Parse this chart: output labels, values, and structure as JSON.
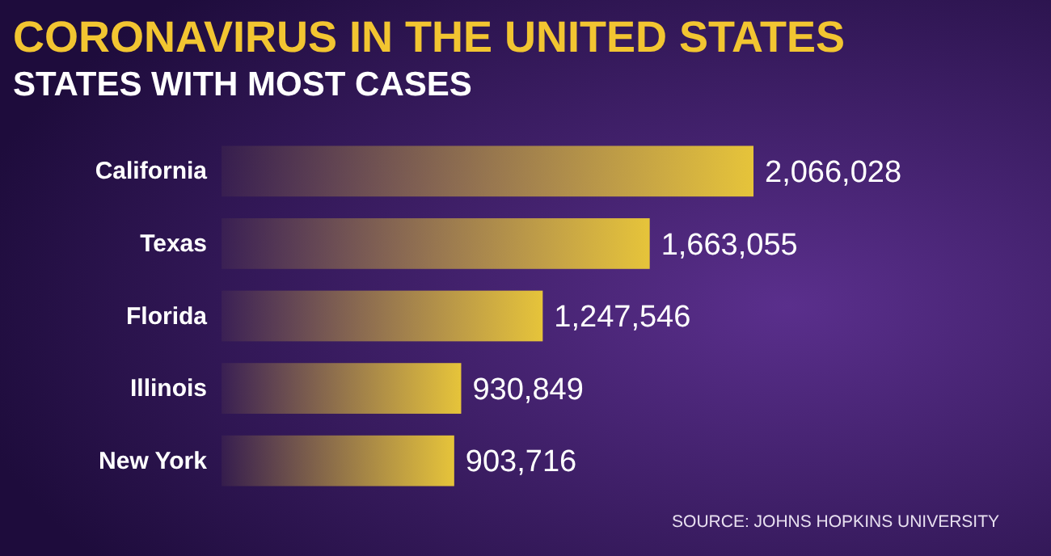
{
  "chart_data": {
    "type": "bar",
    "orientation": "horizontal",
    "title": "CORONAVIRUS IN THE UNITED STATES",
    "subtitle": "STATES WITH MOST CASES",
    "categories": [
      "California",
      "Texas",
      "Florida",
      "Illinois",
      "New York"
    ],
    "values": [
      2066028,
      1663055,
      1247546,
      930849,
      903716
    ],
    "color": "#e6c43a",
    "value_labels": [
      "2,066,028",
      "1,663,055",
      "1,247,546",
      "930,849",
      "903,716"
    ],
    "annotations": [
      "SOURCE: JOHNS HOPKINS UNIVERSITY"
    ]
  }
}
